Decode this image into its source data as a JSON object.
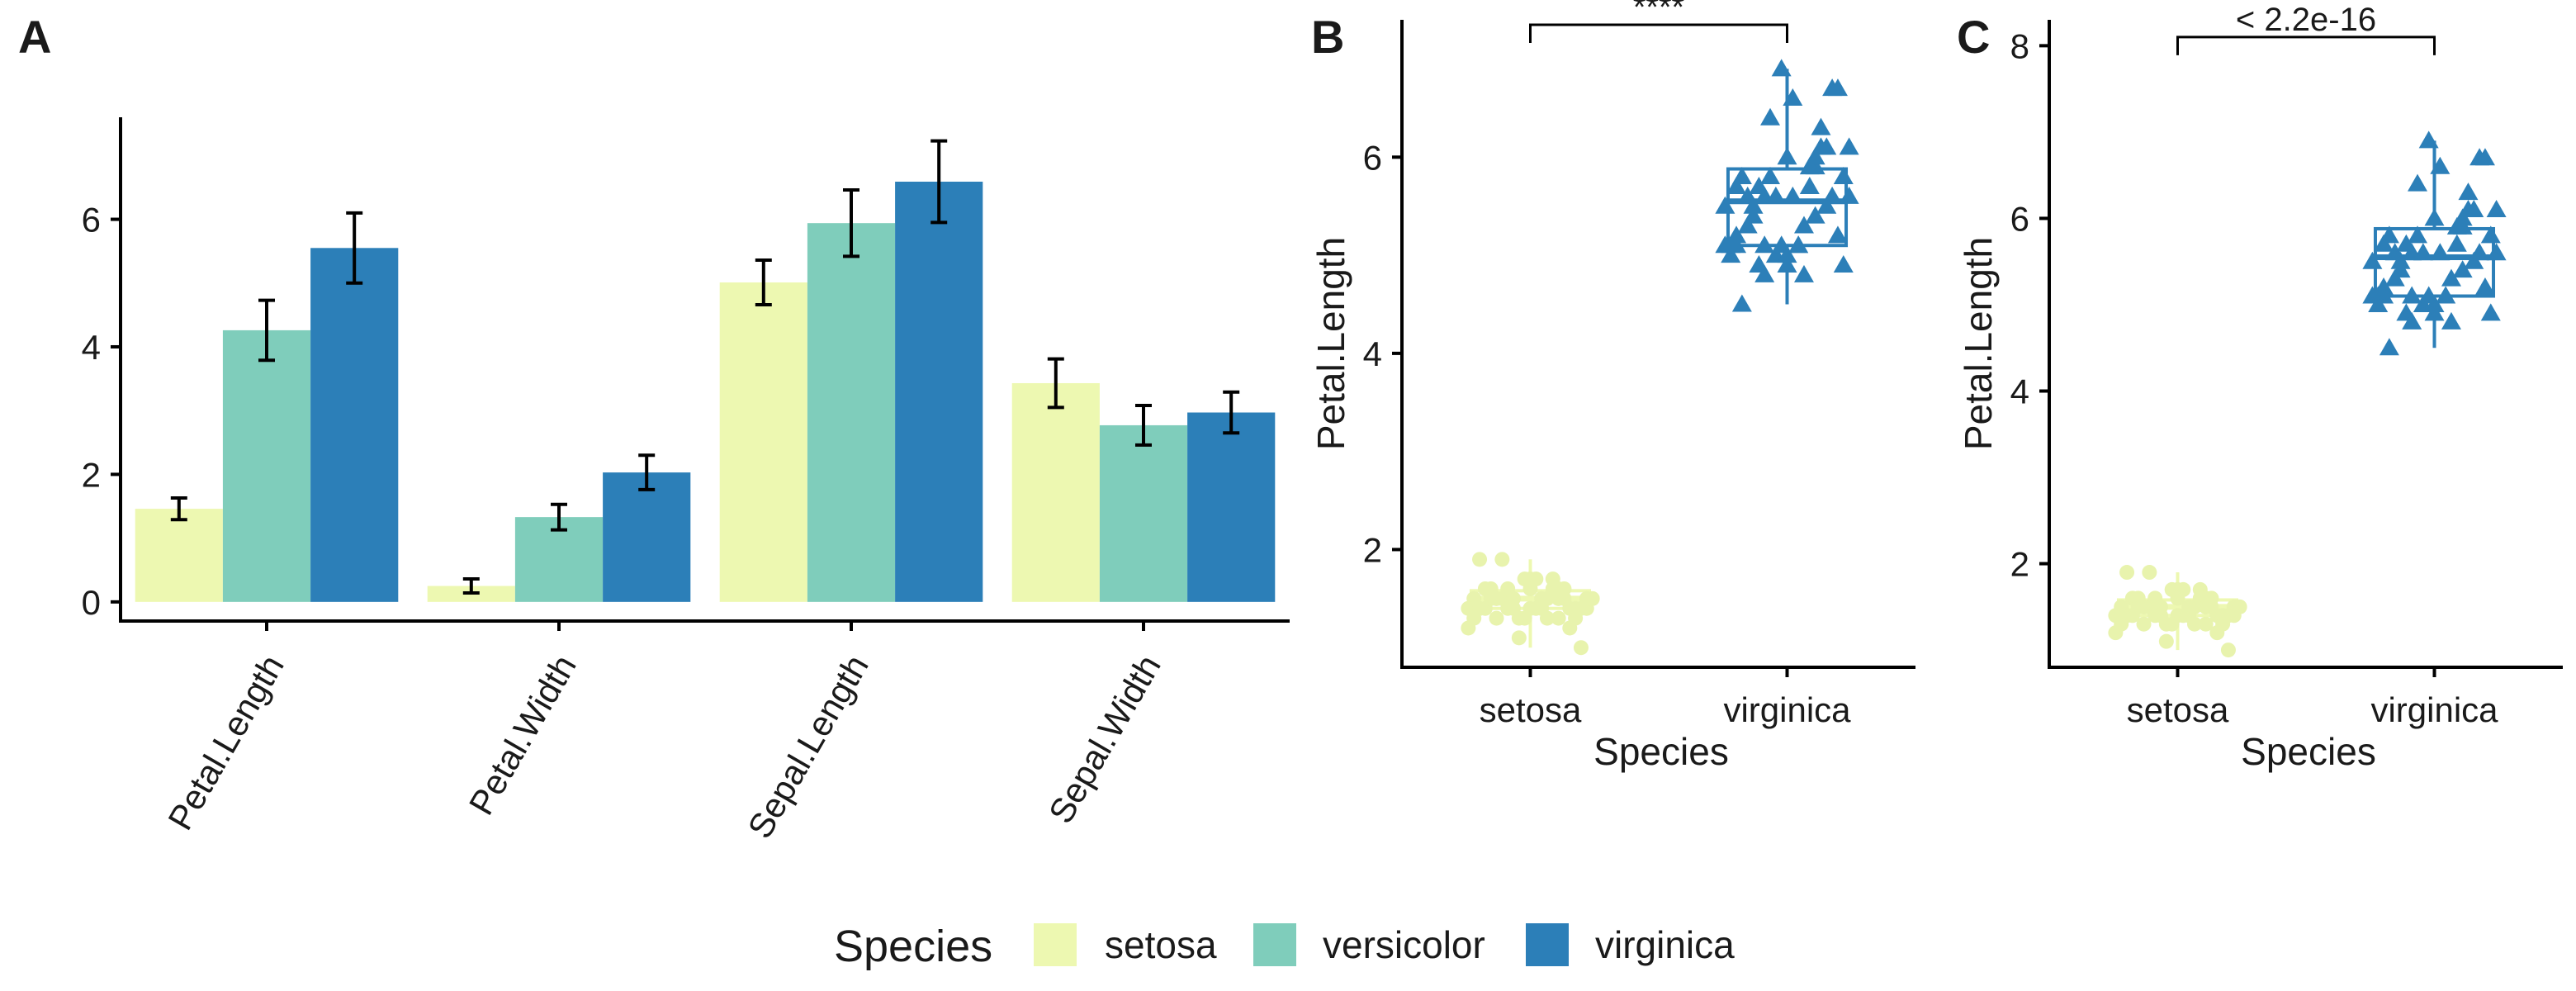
{
  "panels": {
    "a_label": "A",
    "b_label": "B",
    "c_label": "C"
  },
  "legend": {
    "title": "Species",
    "items": [
      {
        "label": "setosa",
        "color": "#edf8b1"
      },
      {
        "label": "versicolor",
        "color": "#7fcdbb"
      },
      {
        "label": "virginica",
        "color": "#2c7fb8"
      }
    ]
  },
  "colors": {
    "setosa": "#edf8b1",
    "versicolor": "#7fcdbb",
    "virginica": "#2c7fb8"
  },
  "chart_data": [
    {
      "panel": "A",
      "type": "bar",
      "categories": [
        "Petal.Length",
        "Petal.Width",
        "Sepal.Length",
        "Sepal.Width"
      ],
      "series": [
        {
          "name": "setosa",
          "values": [
            1.46,
            0.25,
            5.01,
            3.43
          ],
          "err": [
            0.17,
            0.11,
            0.35,
            0.38
          ]
        },
        {
          "name": "versicolor",
          "values": [
            4.26,
            1.33,
            5.94,
            2.77
          ],
          "err": [
            0.47,
            0.2,
            0.52,
            0.31
          ]
        },
        {
          "name": "virginica",
          "values": [
            5.55,
            2.03,
            6.59,
            2.97
          ],
          "err": [
            0.55,
            0.27,
            0.64,
            0.32
          ]
        }
      ],
      "ylim": [
        -0.3,
        7.6
      ],
      "yticks": [
        0,
        2,
        4,
        6
      ],
      "xlabel": "",
      "ylabel": "",
      "x_tick_rotation": -60
    },
    {
      "panel": "B",
      "type": "box",
      "categories": [
        "setosa",
        "virginica"
      ],
      "xlabel": "Species",
      "ylabel": "Petal.Length",
      "ylim": [
        0.8,
        7.4
      ],
      "yticks": [
        2,
        4,
        6
      ],
      "boxes": [
        {
          "name": "setosa",
          "min": 1.0,
          "q1": 1.4,
          "median": 1.5,
          "q3": 1.58,
          "max": 1.9
        },
        {
          "name": "virginica",
          "min": 4.5,
          "q1": 5.1,
          "median": 5.55,
          "q3": 5.88,
          "max": 6.9
        }
      ],
      "points": [
        {
          "name": "setosa",
          "marker": "circle",
          "values": [
            1.4,
            1.4,
            1.3,
            1.5,
            1.4,
            1.7,
            1.4,
            1.5,
            1.4,
            1.5,
            1.5,
            1.6,
            1.4,
            1.1,
            1.2,
            1.5,
            1.3,
            1.4,
            1.7,
            1.5,
            1.7,
            1.5,
            1.0,
            1.7,
            1.9,
            1.6,
            1.6,
            1.5,
            1.4,
            1.6,
            1.6,
            1.5,
            1.5,
            1.4,
            1.5,
            1.2,
            1.3,
            1.4,
            1.3,
            1.5,
            1.3,
            1.3,
            1.3,
            1.6,
            1.9,
            1.4,
            1.6,
            1.4,
            1.5,
            1.4
          ]
        },
        {
          "name": "virginica",
          "marker": "triangle",
          "values": [
            6.0,
            5.1,
            5.9,
            5.6,
            5.8,
            6.6,
            4.5,
            6.3,
            5.8,
            6.1,
            5.1,
            5.3,
            5.5,
            5.0,
            5.1,
            5.3,
            5.5,
            6.7,
            6.9,
            5.0,
            5.7,
            4.9,
            6.7,
            4.9,
            5.7,
            6.0,
            4.8,
            4.9,
            5.6,
            5.8,
            6.1,
            6.4,
            5.6,
            5.1,
            5.6,
            6.1,
            5.6,
            5.5,
            4.8,
            5.4,
            5.6,
            5.1,
            5.1,
            5.9,
            5.7,
            5.2,
            5.0,
            5.2,
            5.4,
            5.1
          ]
        }
      ],
      "comparison": {
        "label": "****",
        "y": 7.35
      }
    },
    {
      "panel": "C",
      "type": "box",
      "categories": [
        "setosa",
        "virginica"
      ],
      "xlabel": "Species",
      "ylabel": "Petal.Length",
      "ylim": [
        0.8,
        8.3
      ],
      "yticks": [
        2,
        4,
        6,
        8
      ],
      "boxes": [
        {
          "name": "setosa",
          "min": 1.0,
          "q1": 1.4,
          "median": 1.5,
          "q3": 1.58,
          "max": 1.9
        },
        {
          "name": "virginica",
          "min": 4.5,
          "q1": 5.1,
          "median": 5.55,
          "q3": 5.88,
          "max": 6.9
        }
      ],
      "points": [
        {
          "name": "setosa",
          "marker": "circle",
          "values": [
            1.4,
            1.4,
            1.3,
            1.5,
            1.4,
            1.7,
            1.4,
            1.5,
            1.4,
            1.5,
            1.5,
            1.6,
            1.4,
            1.1,
            1.2,
            1.5,
            1.3,
            1.4,
            1.7,
            1.5,
            1.7,
            1.5,
            1.0,
            1.7,
            1.9,
            1.6,
            1.6,
            1.5,
            1.4,
            1.6,
            1.6,
            1.5,
            1.5,
            1.4,
            1.5,
            1.2,
            1.3,
            1.4,
            1.3,
            1.5,
            1.3,
            1.3,
            1.3,
            1.6,
            1.9,
            1.4,
            1.6,
            1.4,
            1.5,
            1.4
          ]
        },
        {
          "name": "virginica",
          "marker": "triangle",
          "values": [
            6.0,
            5.1,
            5.9,
            5.6,
            5.8,
            6.6,
            4.5,
            6.3,
            5.8,
            6.1,
            5.1,
            5.3,
            5.5,
            5.0,
            5.1,
            5.3,
            5.5,
            6.7,
            6.9,
            5.0,
            5.7,
            4.9,
            6.7,
            4.9,
            5.7,
            6.0,
            4.8,
            4.9,
            5.6,
            5.8,
            6.1,
            6.4,
            5.6,
            5.1,
            5.6,
            6.1,
            5.6,
            5.5,
            4.8,
            5.4,
            5.6,
            5.1,
            5.1,
            5.9,
            5.7,
            5.2,
            5.0,
            5.2,
            5.4,
            5.1
          ]
        }
      ],
      "comparison": {
        "label": "< 2.2e-16",
        "y": 8.1
      }
    }
  ]
}
